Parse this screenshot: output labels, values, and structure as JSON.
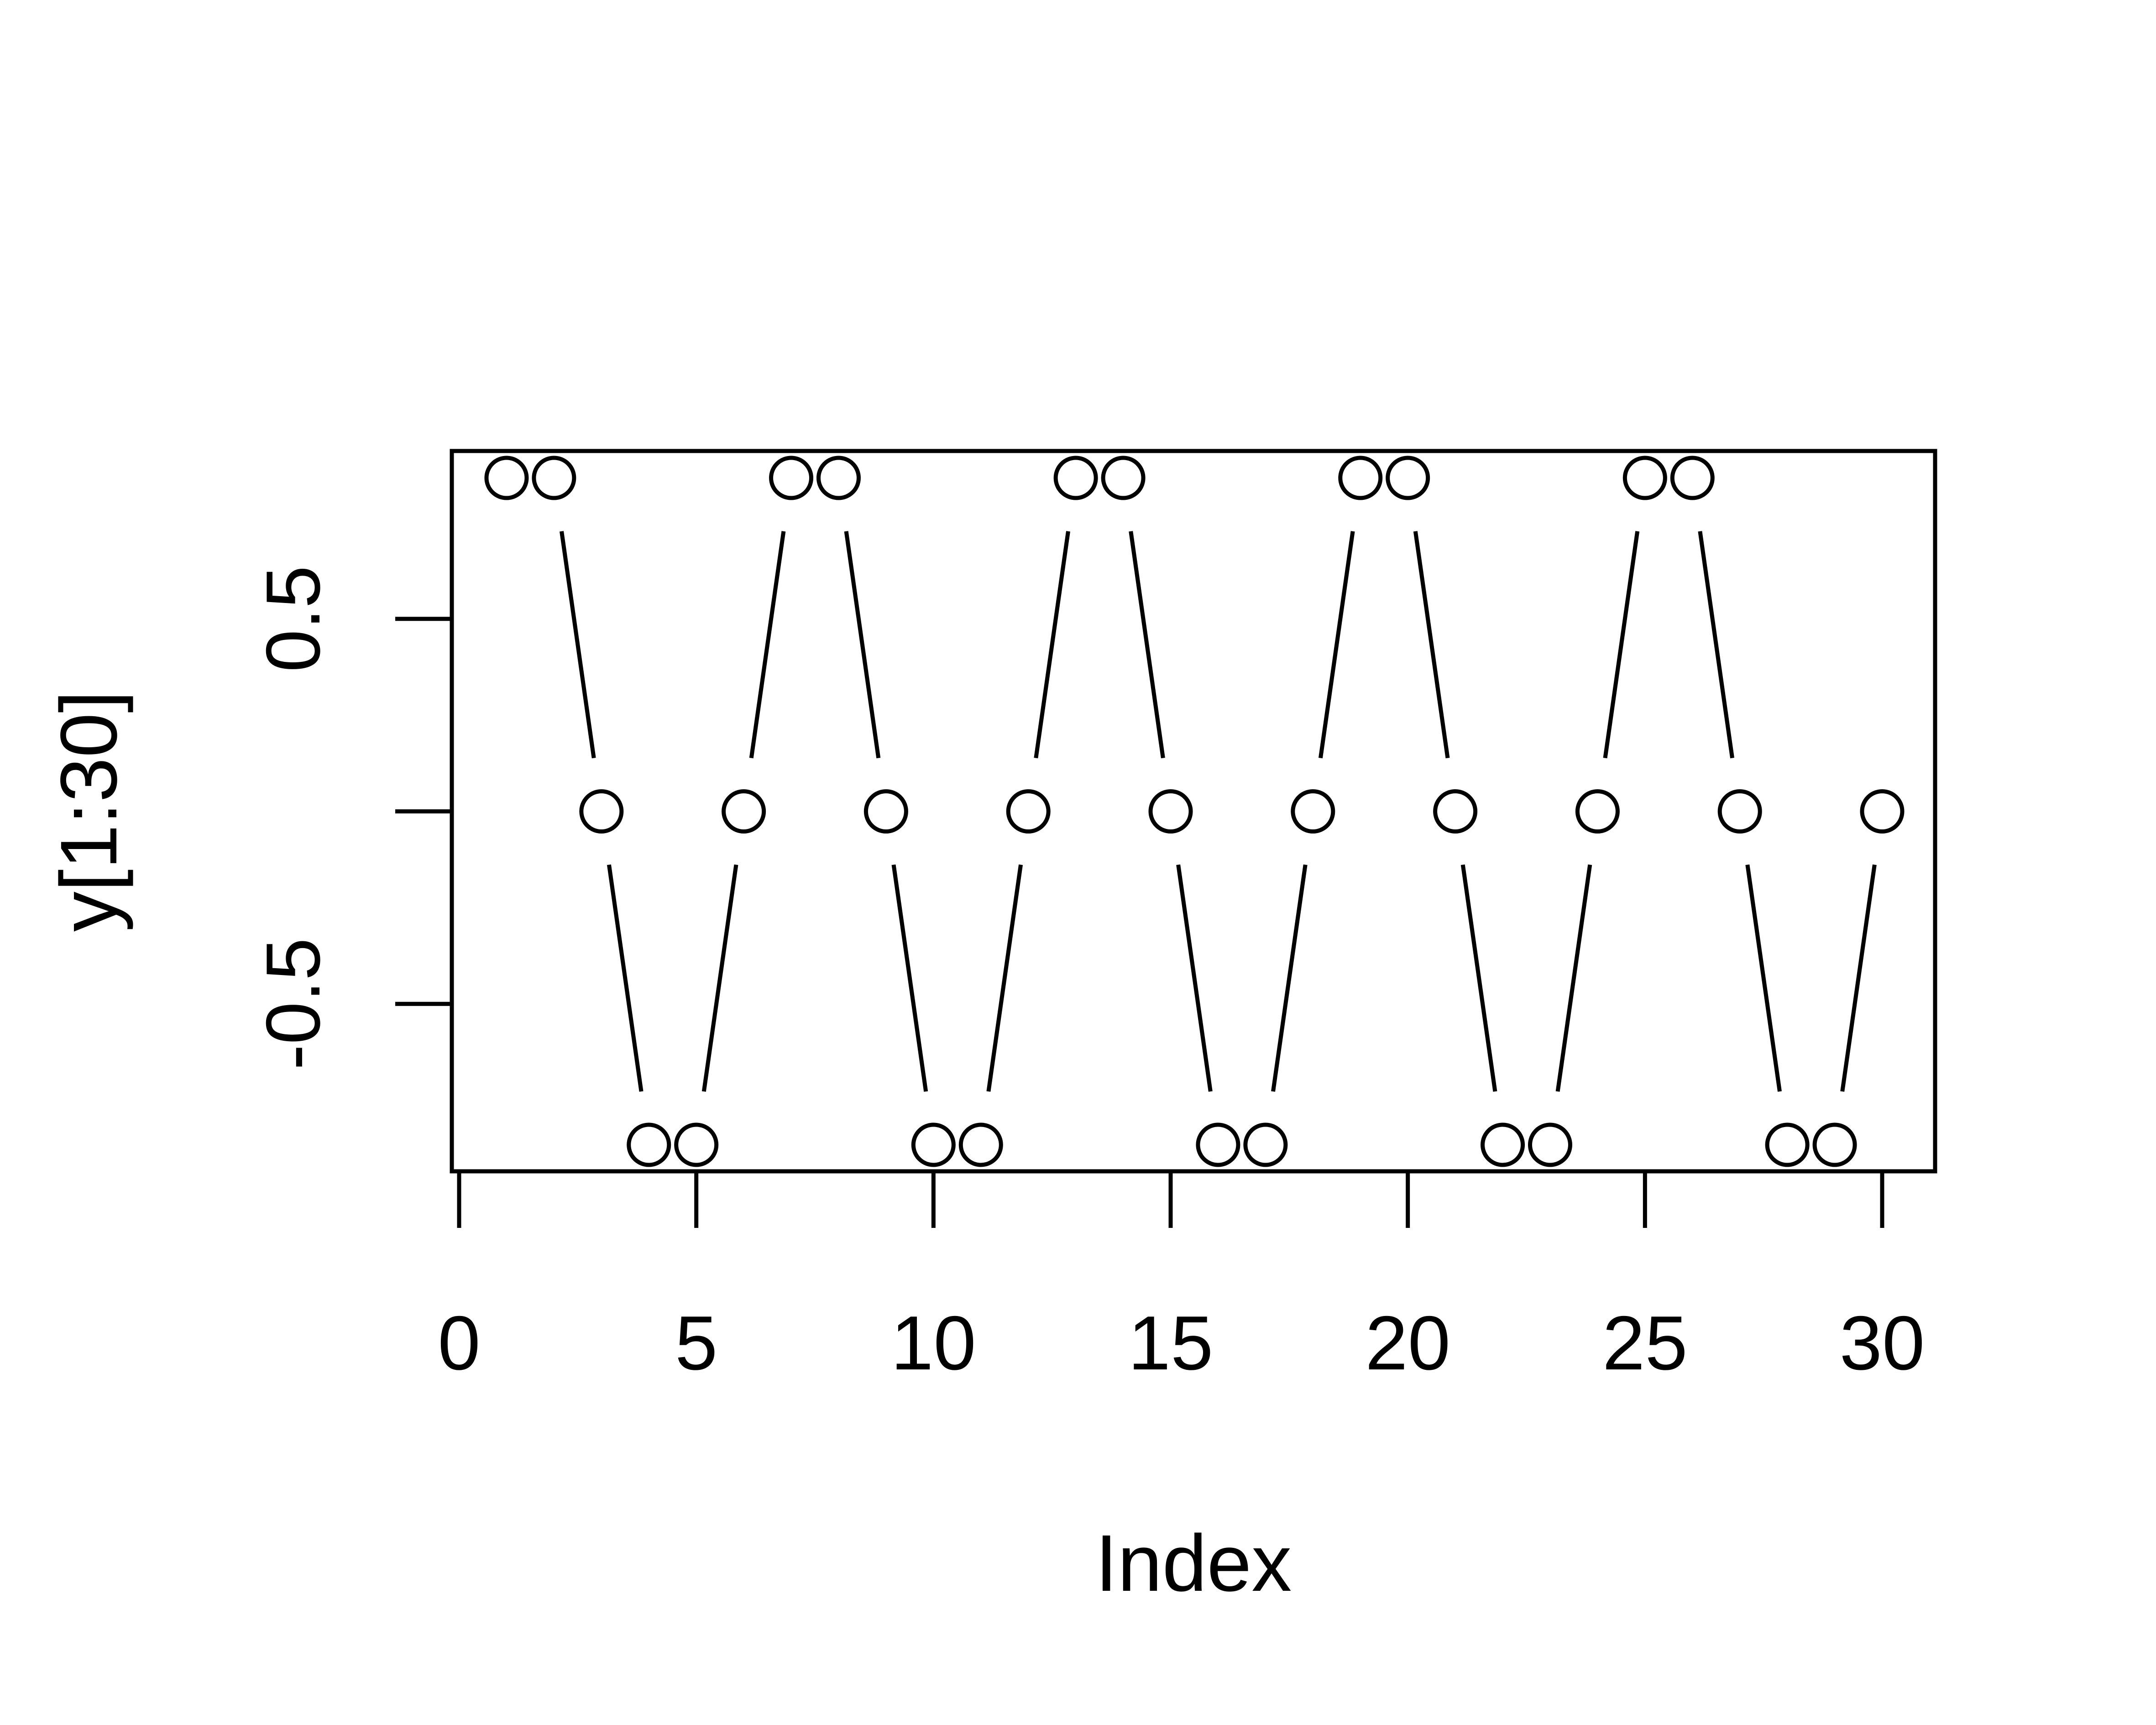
{
  "chart_data": {
    "type": "line",
    "markers": "open-circle",
    "line_style": "gapped",
    "xlabel": "Index",
    "ylabel": "y[1:30]",
    "xlim": [
      0,
      30
    ],
    "ylim": [
      -0.866,
      0.866
    ],
    "x_ticks": [
      0,
      5,
      10,
      15,
      20,
      25,
      30
    ],
    "x_tick_labels": [
      "0",
      "5",
      "10",
      "15",
      "20",
      "25",
      "30"
    ],
    "y_ticks": [
      -0.5,
      0,
      0.5
    ],
    "y_tick_labels": [
      "-0.5",
      "",
      "0.5"
    ],
    "grid": false,
    "series": [
      {
        "x": [
          1,
          2,
          3,
          4,
          5,
          6,
          7,
          8,
          9,
          10,
          11,
          12,
          13,
          14,
          15,
          16,
          17,
          18,
          19,
          20,
          21,
          22,
          23,
          24,
          25,
          26,
          27,
          28,
          29,
          30
        ],
        "values": [
          0.866,
          0.866,
          0,
          -0.866,
          -0.866,
          0,
          0.866,
          0.866,
          0,
          -0.866,
          -0.866,
          0,
          0.866,
          0.866,
          0,
          -0.866,
          -0.866,
          0,
          0.866,
          0.866,
          0,
          -0.866,
          -0.866,
          0,
          0.866,
          0.866,
          0,
          -0.866,
          -0.866,
          0
        ]
      }
    ],
    "colors": {
      "stroke": "#000000",
      "background": "#ffffff"
    }
  }
}
